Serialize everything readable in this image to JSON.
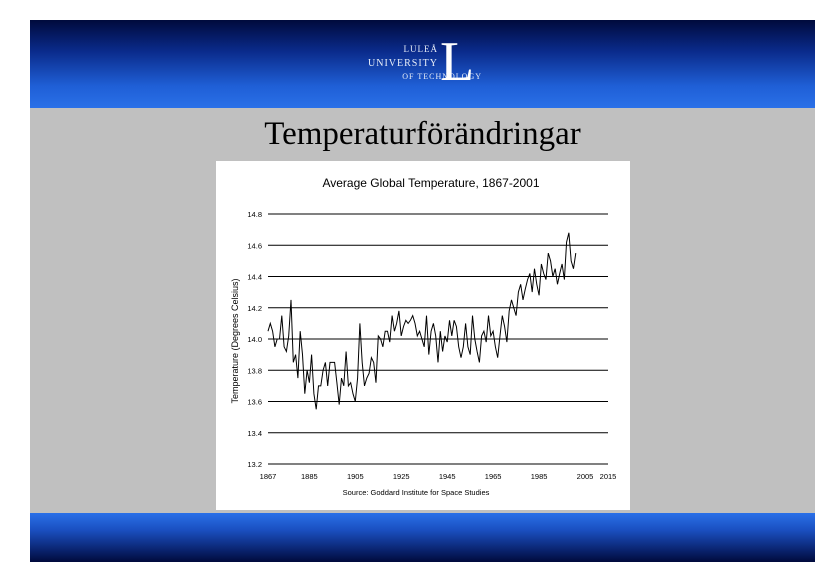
{
  "logo": {
    "line1": "LULEÅ",
    "line2": "UNIVERSITY",
    "line3": "OF TECHNOLOGY",
    "letter": "L"
  },
  "slide_title": "Temperaturförändringar",
  "colors": {
    "banner": "#1f5fd6",
    "slide_background": "#c0c0c0",
    "chart_background": "#ffffff",
    "line": "#000000"
  },
  "chart_data": {
    "type": "line",
    "title": "Average Global Temperature, 1867-2001",
    "ylabel": "Temperature (Degrees Celsius)",
    "xlabel": "",
    "source": "Source: Goddard Institute for Space Studies",
    "xlim": [
      1867,
      2015
    ],
    "ylim": [
      13.2,
      14.8
    ],
    "grid": "horizontal",
    "yticks": [
      13.2,
      13.4,
      13.6,
      13.8,
      14.0,
      14.2,
      14.4,
      14.6,
      14.8
    ],
    "ytick_labels": [
      "13.2",
      "13.4",
      "13.6",
      "13.8",
      "14.0",
      "14.2",
      "14.4",
      "14.6",
      "14.8"
    ],
    "xticks": [
      1867,
      1885,
      1905,
      1925,
      1945,
      1965,
      1985,
      2005,
      2015
    ],
    "xtick_labels": [
      "1867",
      "1885",
      "1905",
      "1925",
      "1945",
      "1965",
      "1985",
      "2005",
      "2015"
    ],
    "series": [
      {
        "x": [
          1867,
          1868,
          1869,
          1870,
          1871,
          1872,
          1873,
          1874,
          1875,
          1876,
          1877,
          1878,
          1879,
          1880,
          1881,
          1882,
          1883,
          1884,
          1885,
          1886,
          1887,
          1888,
          1889,
          1890,
          1891,
          1892,
          1893,
          1894,
          1895,
          1896,
          1897,
          1898,
          1899,
          1900,
          1901,
          1902,
          1903,
          1904,
          1905,
          1906,
          1907,
          1908,
          1909,
          1910,
          1911,
          1912,
          1913,
          1914,
          1915,
          1916,
          1917,
          1918,
          1919,
          1920,
          1921,
          1922,
          1923,
          1924,
          1925,
          1926,
          1927,
          1928,
          1929,
          1930,
          1931,
          1932,
          1933,
          1934,
          1935,
          1936,
          1937,
          1938,
          1939,
          1940,
          1941,
          1942,
          1943,
          1944,
          1945,
          1946,
          1947,
          1948,
          1949,
          1950,
          1951,
          1952,
          1953,
          1954,
          1955,
          1956,
          1957,
          1958,
          1959,
          1960,
          1961,
          1962,
          1963,
          1964,
          1965,
          1966,
          1967,
          1968,
          1969,
          1970,
          1971,
          1972,
          1973,
          1974,
          1975,
          1976,
          1977,
          1978,
          1979,
          1980,
          1981,
          1982,
          1983,
          1984,
          1985,
          1986,
          1987,
          1988,
          1989,
          1990,
          1991,
          1992,
          1993,
          1994,
          1995,
          1996,
          1997,
          1998,
          1999,
          2000,
          2001
        ],
        "values": [
          14.05,
          14.1,
          14.05,
          13.95,
          14.0,
          14.0,
          14.15,
          13.95,
          13.92,
          14.02,
          14.25,
          13.85,
          13.9,
          13.75,
          14.05,
          13.9,
          13.65,
          13.8,
          13.72,
          13.9,
          13.65,
          13.55,
          13.7,
          13.7,
          13.8,
          13.85,
          13.7,
          13.85,
          13.85,
          13.85,
          13.72,
          13.58,
          13.75,
          13.7,
          13.92,
          13.7,
          13.72,
          13.65,
          13.6,
          13.75,
          14.1,
          13.85,
          13.7,
          13.75,
          13.78,
          13.88,
          13.85,
          13.72,
          14.02,
          14.0,
          13.95,
          14.05,
          14.05,
          13.98,
          14.15,
          14.05,
          14.1,
          14.18,
          14.02,
          14.08,
          14.12,
          14.1,
          14.12,
          14.15,
          14.1,
          14.02,
          14.05,
          14.0,
          13.95,
          14.15,
          13.9,
          14.05,
          14.1,
          14.02,
          13.85,
          14.05,
          13.92,
          14.02,
          13.98,
          14.12,
          14.02,
          14.12,
          14.08,
          13.95,
          13.88,
          13.95,
          14.1,
          13.95,
          13.9,
          14.15,
          14.0,
          13.92,
          13.85,
          14.02,
          14.05,
          13.98,
          14.15,
          14.02,
          14.05,
          13.95,
          13.88,
          14.02,
          14.15,
          14.08,
          13.98,
          14.18,
          14.25,
          14.2,
          14.15,
          14.3,
          14.35,
          14.25,
          14.32,
          14.38,
          14.42,
          14.3,
          14.45,
          14.35,
          14.28,
          14.48,
          14.42,
          14.38,
          14.55,
          14.5,
          14.4,
          14.45,
          14.35,
          14.42,
          14.48,
          14.38,
          14.62,
          14.68,
          14.5,
          14.45,
          14.55
        ]
      }
    ]
  }
}
